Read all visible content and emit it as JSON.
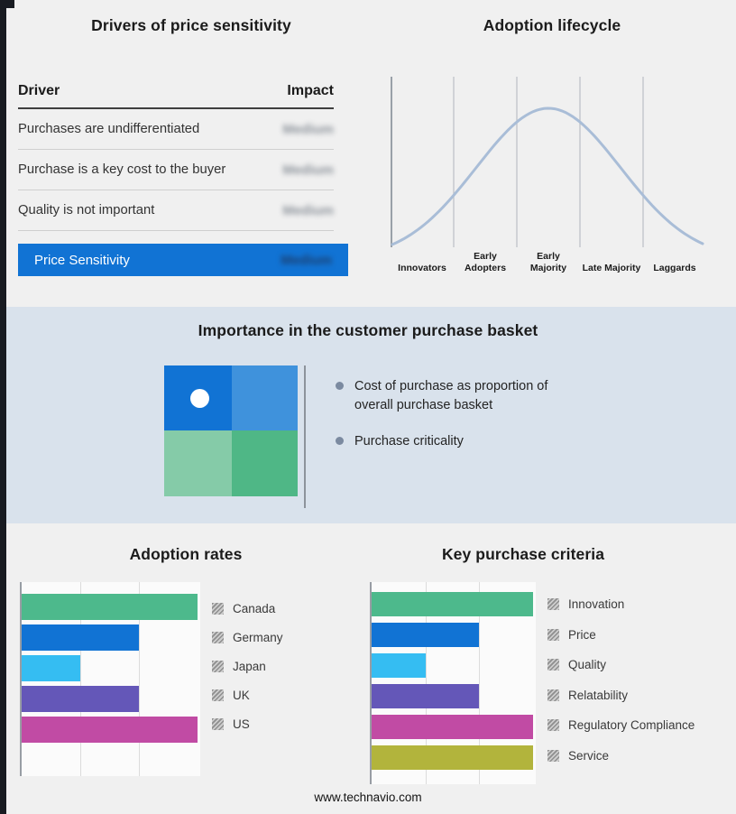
{
  "page": {
    "footer_url": "www.technavio.com"
  },
  "drivers": {
    "title": "Drivers of price sensitivity",
    "columns": {
      "driver": "Driver",
      "impact": "Impact"
    },
    "rows": [
      {
        "driver": "Purchases are undifferentiated",
        "impact": "Medium"
      },
      {
        "driver": "Purchase is a key cost to the buyer",
        "impact": "Medium"
      },
      {
        "driver": "Quality is not important",
        "impact": "Medium"
      }
    ],
    "summary": {
      "label": "Price Sensitivity",
      "impact": "Medium"
    },
    "accent_color": "#1173d4",
    "impact_values_blurred": true
  },
  "basket": {
    "title": "Importance in the customer purchase basket",
    "bullets": [
      "Cost of purchase as proportion of overall purchase basket",
      "Purchase criticality"
    ],
    "quadrant_colors": {
      "top_left": "#1173d4",
      "top_right": "#3f92dc",
      "bottom_left": "#85cba8",
      "bottom_right": "#4fb786"
    }
  },
  "chart_data": [
    {
      "name": "adoption_lifecycle",
      "type": "line",
      "title": "Adoption lifecycle",
      "shape": "bell-curve",
      "x_categories": [
        "Innovators",
        "Early Adopters",
        "Early Majority",
        "Late Majority",
        "Laggards"
      ],
      "peak_stage": "Early Majority",
      "line_color": "#a9bdd7",
      "gridlines": "stage-boundaries",
      "y_axis_labels": "none"
    },
    {
      "name": "adoption_rates",
      "type": "bar",
      "orientation": "horizontal",
      "title": "Adoption rates",
      "categories": [
        "Canada",
        "Germany",
        "Japan",
        "UK",
        "US"
      ],
      "values": [
        3,
        2,
        1,
        2,
        3
      ],
      "colors": [
        "#4db98c",
        "#1173d4",
        "#35bdf2",
        "#6457b8",
        "#c14ba4"
      ],
      "xlim": [
        0,
        3.05
      ],
      "gridlines": [
        1,
        2
      ],
      "value_axis_labels": "none",
      "values_note": "relative units estimated from unlabeled gridlines",
      "legend_position": "right"
    },
    {
      "name": "key_purchase_criteria",
      "type": "bar",
      "orientation": "horizontal",
      "title": "Key purchase criteria",
      "categories": [
        "Innovation",
        "Price",
        "Quality",
        "Relatability",
        "Regulatory Compliance",
        "Service"
      ],
      "values": [
        3,
        2,
        1,
        2,
        3,
        3
      ],
      "colors": [
        "#4db98c",
        "#1173d4",
        "#35bdf2",
        "#6457b8",
        "#c14ba4",
        "#b2b43c"
      ],
      "xlim": [
        0,
        3.05
      ],
      "gridlines": [
        1,
        2
      ],
      "value_axis_labels": "none",
      "values_note": "relative units estimated from unlabeled gridlines",
      "legend_position": "right"
    }
  ]
}
